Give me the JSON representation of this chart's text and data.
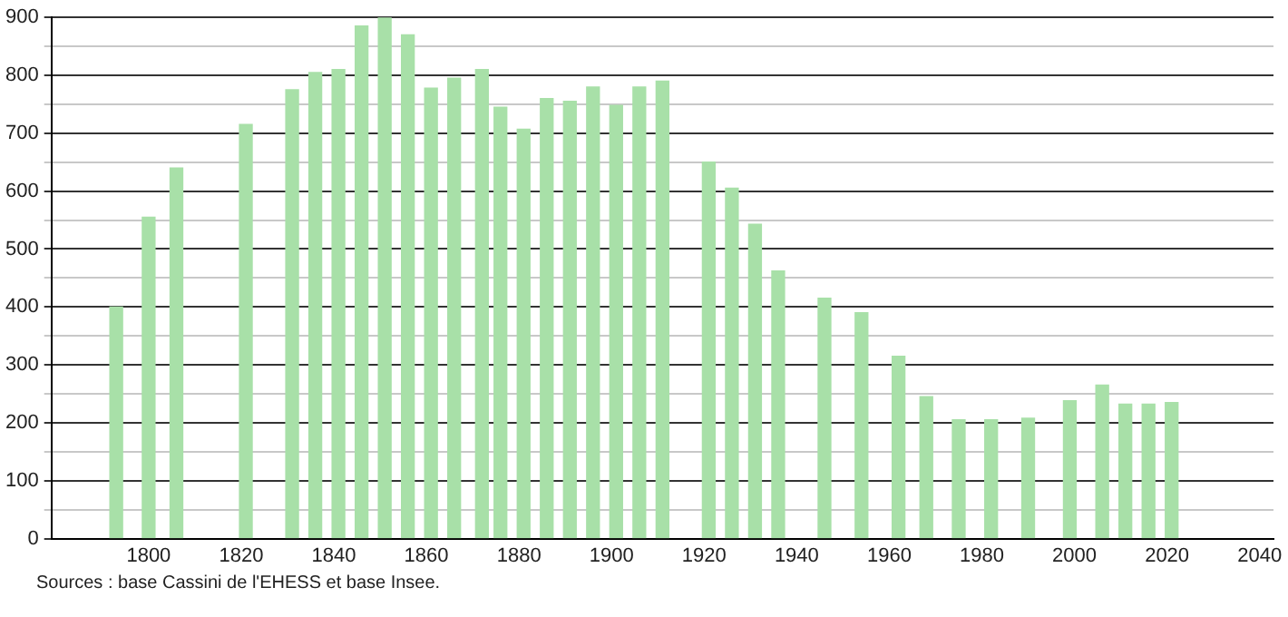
{
  "chart_data": {
    "type": "bar",
    "x": [
      1793,
      1800,
      1806,
      1821,
      1831,
      1836,
      1841,
      1846,
      1851,
      1856,
      1861,
      1866,
      1872,
      1876,
      1881,
      1886,
      1891,
      1896,
      1901,
      1906,
      1911,
      1921,
      1926,
      1931,
      1936,
      1946,
      1954,
      1962,
      1968,
      1975,
      1982,
      1990,
      1999,
      2006,
      2011,
      2016,
      2021
    ],
    "values": [
      400,
      555,
      640,
      715,
      775,
      805,
      810,
      885,
      900,
      870,
      778,
      795,
      810,
      745,
      707,
      760,
      755,
      780,
      748,
      780,
      790,
      650,
      605,
      543,
      462,
      415,
      390,
      315,
      245,
      205,
      205,
      208,
      238,
      265,
      232,
      232,
      235
    ],
    "color": "#a8e0a8",
    "xlim": [
      1779,
      2043
    ],
    "xticks": [
      1800,
      1820,
      1840,
      1860,
      1880,
      1900,
      1920,
      1940,
      1960,
      1980,
      2000,
      2020,
      2040
    ],
    "ylim": [
      0,
      900
    ],
    "yticks": [
      0,
      {
        "value": 50,
        "label": null
      },
      100,
      {
        "value": 150,
        "label": null
      },
      200,
      {
        "value": 250,
        "label": null
      },
      300,
      {
        "value": 350,
        "label": null
      },
      400,
      {
        "value": 450,
        "label": null
      },
      500,
      {
        "value": 550,
        "label": null
      },
      600,
      {
        "value": 650,
        "label": null
      },
      700,
      {
        "value": 750,
        "label": null
      },
      800,
      {
        "value": 850,
        "label": null
      },
      900
    ],
    "grid": "y",
    "legend": false,
    "annotations": [
      "Sources : base Cassini de l'EHESS et base Insee."
    ]
  }
}
